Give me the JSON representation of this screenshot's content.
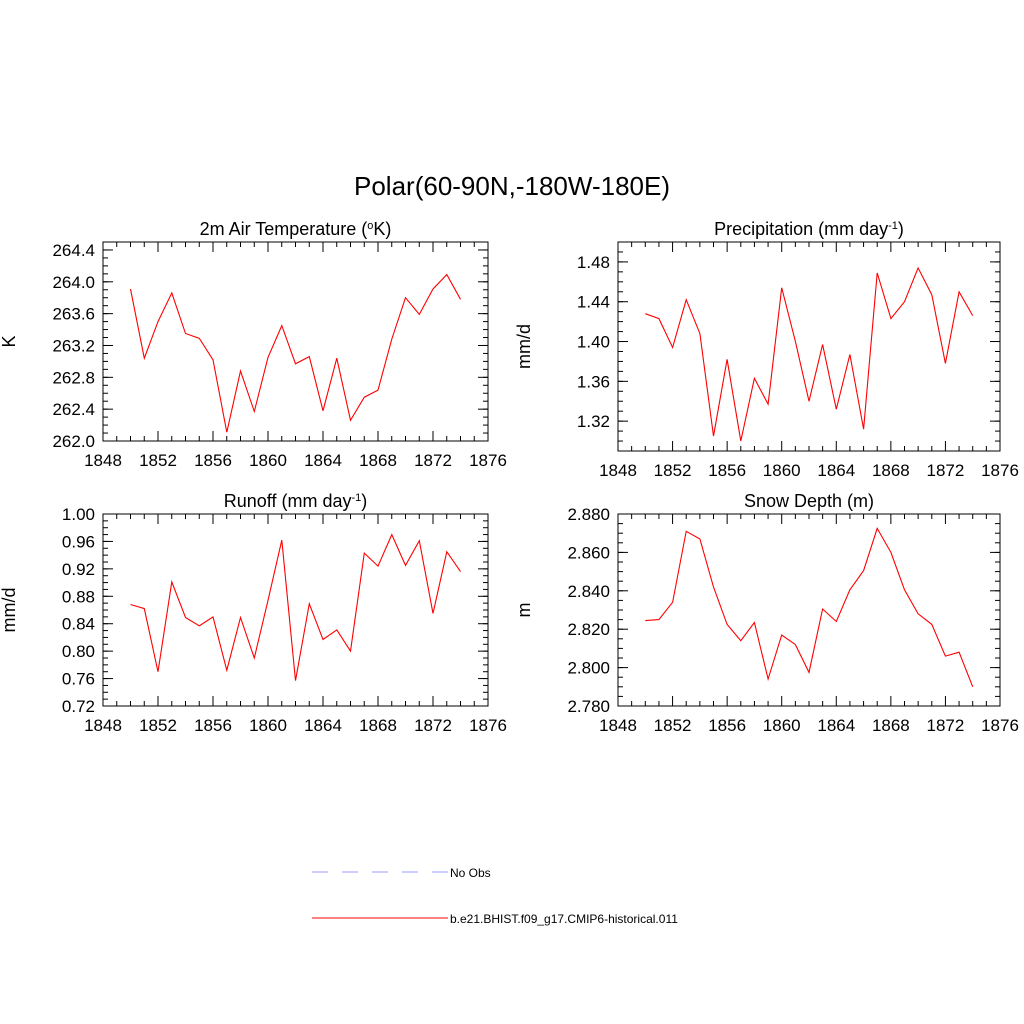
{
  "figure": {
    "title": "Polar(60-90N,-180W-180E)"
  },
  "colors": {
    "model": "#ff0000",
    "obs": "#9999ff",
    "axis": "#000000"
  },
  "legend": {
    "items": [
      {
        "label": "No Obs",
        "color": "#9999ff",
        "style": "dashed"
      },
      {
        "label": "b.e21.BHIST.f09_g17.CMIP6-historical.011",
        "color": "#ff0000",
        "style": "solid"
      }
    ]
  },
  "chart_data": [
    {
      "type": "line",
      "title": "2m Air Temperature (",
      "title_sup": "o",
      "title_after": "K)",
      "ylabel": "K",
      "xlim": [
        1848,
        1876
      ],
      "ylim": [
        262.0,
        264.5
      ],
      "xticks": [
        1848,
        1852,
        1856,
        1860,
        1864,
        1868,
        1872,
        1876
      ],
      "yticks": [
        262.0,
        262.4,
        262.8,
        263.2,
        263.6,
        264.0,
        264.4
      ],
      "ytick_labels": [
        "262.0",
        "262.4",
        "262.8",
        "263.2",
        "263.6",
        "264.0",
        "264.4"
      ],
      "yminor": 0.1,
      "x": [
        1850,
        1851,
        1852,
        1853,
        1854,
        1855,
        1856,
        1857,
        1858,
        1859,
        1860,
        1861,
        1862,
        1863,
        1864,
        1865,
        1866,
        1867,
        1868,
        1869,
        1870,
        1871,
        1872,
        1873,
        1874
      ],
      "series": [
        {
          "name": "b.e21.BHIST.f09_g17.CMIP6-historical.011",
          "values": [
            263.91,
            263.04,
            263.5,
            263.86,
            263.35,
            263.29,
            263.02,
            262.11,
            262.88,
            262.37,
            263.05,
            263.45,
            262.97,
            263.06,
            262.38,
            263.04,
            262.26,
            262.55,
            262.64,
            263.28,
            263.8,
            263.59,
            263.91,
            264.09,
            263.78
          ]
        }
      ]
    },
    {
      "type": "line",
      "title": "Precipitation (mm day",
      "title_sup": "-1",
      "title_after": ")",
      "ylabel": "mm/d",
      "xlim": [
        1848,
        1876
      ],
      "ylim": [
        1.29,
        1.5
      ],
      "xticks": [
        1848,
        1852,
        1856,
        1860,
        1864,
        1868,
        1872,
        1876
      ],
      "yticks": [
        1.32,
        1.36,
        1.4,
        1.44,
        1.48
      ],
      "ytick_labels": [
        "1.32",
        "1.36",
        "1.40",
        "1.44",
        "1.48"
      ],
      "yminor": 0.01,
      "x": [
        1850,
        1851,
        1852,
        1853,
        1854,
        1855,
        1856,
        1857,
        1858,
        1859,
        1860,
        1861,
        1862,
        1863,
        1864,
        1865,
        1866,
        1867,
        1868,
        1869,
        1870,
        1871,
        1872,
        1873,
        1874
      ],
      "series": [
        {
          "name": "b.e21.BHIST.f09_g17.CMIP6-historical.011",
          "values": [
            1.428,
            1.423,
            1.394,
            1.442,
            1.408,
            1.305,
            1.382,
            1.3,
            1.363,
            1.337,
            1.454,
            1.4,
            1.34,
            1.397,
            1.332,
            1.387,
            1.312,
            1.469,
            1.423,
            1.44,
            1.474,
            1.447,
            1.378,
            1.45,
            1.426
          ]
        }
      ]
    },
    {
      "type": "line",
      "title": "Runoff (mm day",
      "title_sup": "-1",
      "title_after": ")",
      "ylabel": "mm/d",
      "xlim": [
        1848,
        1876
      ],
      "ylim": [
        0.72,
        1.0
      ],
      "xticks": [
        1848,
        1852,
        1856,
        1860,
        1864,
        1868,
        1872,
        1876
      ],
      "yticks": [
        0.72,
        0.76,
        0.8,
        0.84,
        0.88,
        0.92,
        0.96,
        1.0
      ],
      "ytick_labels": [
        "0.72",
        "0.76",
        "0.80",
        "0.84",
        "0.88",
        "0.92",
        "0.96",
        "1.00"
      ],
      "yminor": 0.01,
      "x": [
        1850,
        1851,
        1852,
        1853,
        1854,
        1855,
        1856,
        1857,
        1858,
        1859,
        1860,
        1861,
        1862,
        1863,
        1864,
        1865,
        1866,
        1867,
        1868,
        1869,
        1870,
        1871,
        1872,
        1873,
        1874
      ],
      "series": [
        {
          "name": "b.e21.BHIST.f09_g17.CMIP6-historical.011",
          "values": [
            0.868,
            0.862,
            0.77,
            0.901,
            0.849,
            0.837,
            0.85,
            0.772,
            0.849,
            0.79,
            0.874,
            0.962,
            0.757,
            0.869,
            0.817,
            0.831,
            0.8,
            0.943,
            0.924,
            0.97,
            0.925,
            0.961,
            0.855,
            0.945,
            0.916
          ]
        }
      ]
    },
    {
      "type": "line",
      "title": "Snow Depth (m)",
      "title_sup": "",
      "title_after": "",
      "ylabel": "m",
      "xlim": [
        1848,
        1876
      ],
      "ylim": [
        2.78,
        2.88
      ],
      "xticks": [
        1848,
        1852,
        1856,
        1860,
        1864,
        1868,
        1872,
        1876
      ],
      "yticks": [
        2.78,
        2.8,
        2.82,
        2.84,
        2.86,
        2.88
      ],
      "ytick_labels": [
        "2.780",
        "2.800",
        "2.820",
        "2.840",
        "2.860",
        "2.880"
      ],
      "yminor": 0.005,
      "x": [
        1850,
        1851,
        1852,
        1853,
        1854,
        1855,
        1856,
        1857,
        1858,
        1859,
        1860,
        1861,
        1862,
        1863,
        1864,
        1865,
        1866,
        1867,
        1868,
        1869,
        1870,
        1871,
        1872,
        1873,
        1874
      ],
      "series": [
        {
          "name": "b.e21.BHIST.f09_g17.CMIP6-historical.011",
          "values": [
            2.8245,
            2.825,
            2.834,
            2.871,
            2.867,
            2.842,
            2.8225,
            2.814,
            2.8235,
            2.794,
            2.817,
            2.812,
            2.7975,
            2.8305,
            2.824,
            2.8405,
            2.8505,
            2.8725,
            2.86,
            2.8405,
            2.828,
            2.8225,
            2.806,
            2.808,
            2.79
          ]
        }
      ]
    }
  ]
}
